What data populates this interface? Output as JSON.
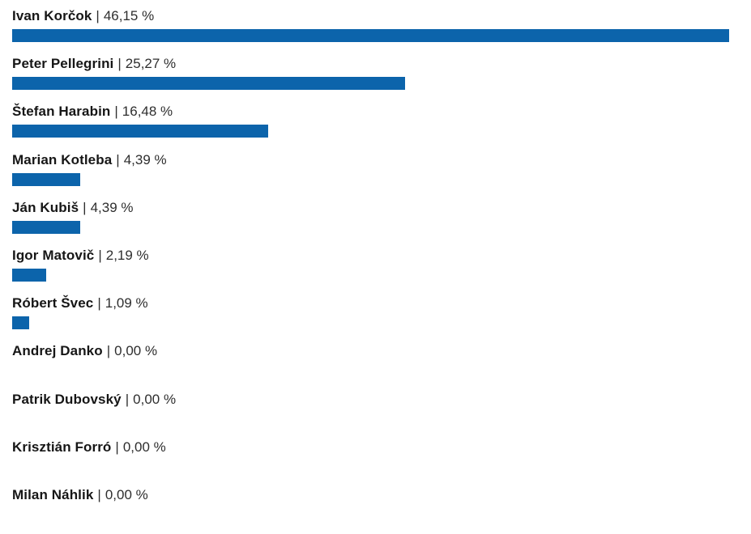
{
  "chart_data": {
    "type": "bar",
    "orientation": "horizontal",
    "bar_color": "#0c64ab",
    "separator": "|",
    "value_suffix": "%",
    "xlim": [
      0,
      46.15
    ],
    "grid": false,
    "legend": false,
    "categories": [
      "Ivan Korčok",
      "Peter Pellegrini",
      "Štefan Harabin",
      "Marian Kotleba",
      "Ján Kubiš",
      "Igor Matovič",
      "Róbert Švec",
      "Andrej Danko",
      "Patrik Dubovský",
      "Krisztián Forró",
      "Milan Náhlik"
    ],
    "values": [
      46.15,
      25.27,
      16.48,
      4.39,
      4.39,
      2.19,
      1.09,
      0,
      0,
      0,
      0
    ],
    "items": [
      {
        "name": "Ivan Korčok",
        "value": 46.15,
        "value_label": "46,15 %"
      },
      {
        "name": "Peter Pellegrini",
        "value": 25.27,
        "value_label": "25,27 %"
      },
      {
        "name": "Štefan Harabin",
        "value": 16.48,
        "value_label": "16,48 %"
      },
      {
        "name": "Marian Kotleba",
        "value": 4.39,
        "value_label": "4,39 %"
      },
      {
        "name": "Ján Kubiš",
        "value": 4.39,
        "value_label": "4,39 %"
      },
      {
        "name": "Igor Matovič",
        "value": 2.19,
        "value_label": "2,19 %"
      },
      {
        "name": "Róbert Švec",
        "value": 1.09,
        "value_label": "1,09 %"
      },
      {
        "name": "Andrej Danko",
        "value": 0,
        "value_label": "0,00 %"
      },
      {
        "name": "Patrik Dubovský",
        "value": 0,
        "value_label": "0,00 %"
      },
      {
        "name": "Krisztián Forró",
        "value": 0,
        "value_label": "0,00 %"
      },
      {
        "name": "Milan Náhlik",
        "value": 0,
        "value_label": "0,00 %"
      }
    ]
  }
}
